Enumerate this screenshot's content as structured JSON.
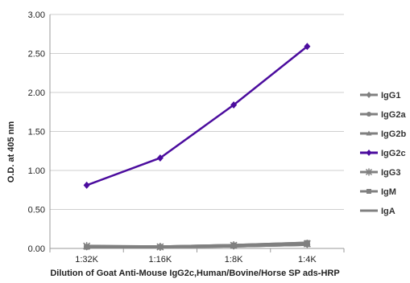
{
  "chart_data": {
    "type": "line",
    "xlabel": "Dilution of Goat Anti-Mouse IgG2c,Human/Bovine/Horse SP ads-HRP",
    "ylabel": "O.D. at 405 nm",
    "categories": [
      "1:32K",
      "1:16K",
      "1:8K",
      "1:4K"
    ],
    "ylim": [
      0,
      3
    ],
    "yticks": [
      "0.00",
      "0.50",
      "1.00",
      "1.50",
      "2.00",
      "2.50",
      "3.00"
    ],
    "grid": "horizontal",
    "legend_position": "right",
    "series": [
      {
        "name": "IgG1",
        "values": [
          0.02,
          0.02,
          0.03,
          0.05
        ],
        "color": "#808080",
        "marker": "diamond"
      },
      {
        "name": "IgG2a",
        "values": [
          0.02,
          0.02,
          0.03,
          0.05
        ],
        "color": "#808080",
        "marker": "circle"
      },
      {
        "name": "IgG2b",
        "values": [
          0.02,
          0.02,
          0.03,
          0.05
        ],
        "color": "#808080",
        "marker": "triangle"
      },
      {
        "name": "IgG2c",
        "values": [
          0.81,
          1.16,
          1.84,
          2.59
        ],
        "color": "#4B0C9E",
        "marker": "diamond"
      },
      {
        "name": "IgG3",
        "values": [
          0.03,
          0.02,
          0.04,
          0.06
        ],
        "color": "#808080",
        "marker": "star"
      },
      {
        "name": "IgM",
        "values": [
          0.02,
          0.02,
          0.04,
          0.07
        ],
        "color": "#808080",
        "marker": "square"
      },
      {
        "name": "IgA",
        "values": [
          0.02,
          0.02,
          0.04,
          0.07
        ],
        "color": "#808080",
        "marker": "none"
      }
    ]
  }
}
